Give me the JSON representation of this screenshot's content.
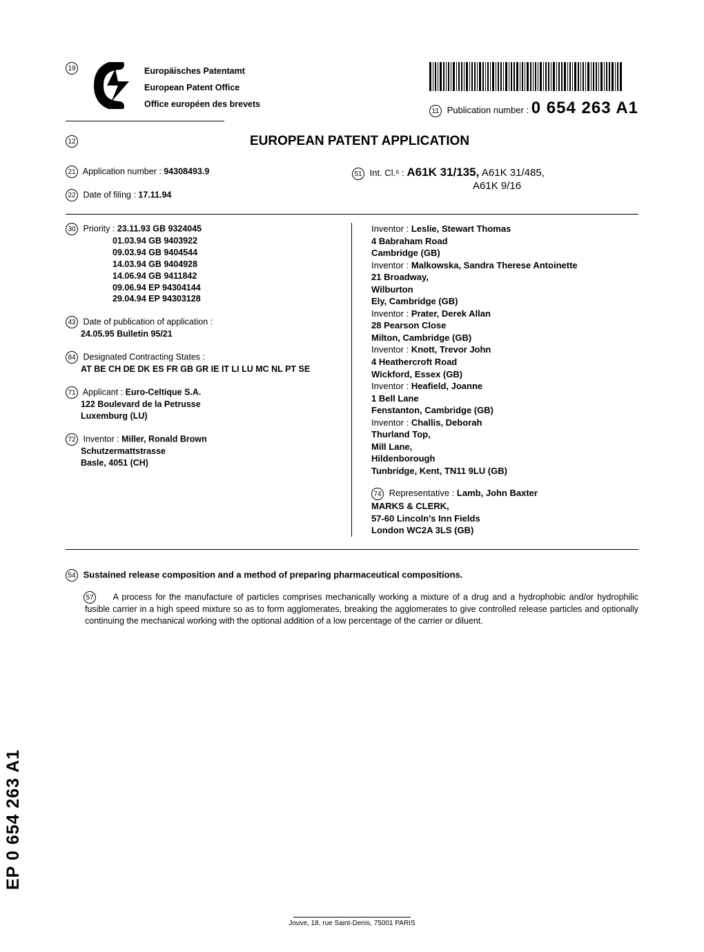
{
  "header": {
    "office_titles": [
      "Europäisches Patentamt",
      "European Patent Office",
      "Office européen des brevets"
    ],
    "circled_19": "19",
    "circled_11": "11",
    "pub_label": "Publication number :",
    "pub_number": "0 654 263 A1"
  },
  "doc_title": {
    "circled": "12",
    "text": "EUROPEAN PATENT APPLICATION"
  },
  "pre_biblio": {
    "app_no": {
      "circled": "21",
      "label": "Application number :",
      "value": "94308493.9"
    },
    "filing": {
      "circled": "22",
      "label": "Date of filing :",
      "value": "17.11.94"
    },
    "intcl": {
      "circled": "51",
      "label": "Int. Cl.⁶ :",
      "main": "A61K 31/135,",
      "sub": "A61K 31/485,",
      "line2": "A61K 9/16"
    }
  },
  "biblio_left": {
    "priority": {
      "circled": "30",
      "label": "Priority :",
      "items": [
        "23.11.93 GB 9324045",
        "01.03.94 GB 9403922",
        "09.03.94 GB 9404544",
        "14.03.94 GB 9404928",
        "14.06.94 GB 9411842",
        "09.06.94 EP 94304144",
        "29.04.94 EP 94303128"
      ]
    },
    "pub_app": {
      "circled": "43",
      "label": "Date of publication of application :",
      "value": "24.05.95 Bulletin 95/21"
    },
    "states": {
      "circled": "84",
      "label": "Designated Contracting States :",
      "value": "AT BE CH DE DK ES FR GB GR IE IT LI LU MC NL PT SE"
    },
    "applicant": {
      "circled": "71",
      "label": "Applicant :",
      "name": "Euro-Celtique S.A.",
      "addr1": "122 Boulevard de la Petrusse",
      "addr2": "Luxemburg (LU)"
    },
    "inventor1": {
      "circled": "72",
      "label": "Inventor :",
      "name": "Miller, Ronald Brown",
      "addr1": "Schutzermattstrasse",
      "addr2": "Basle, 4051 (CH)"
    }
  },
  "biblio_right": {
    "inventors": [
      {
        "label": "Inventor :",
        "name": "Leslie, Stewart Thomas",
        "lines": [
          "4 Babraham Road",
          "Cambridge (GB)"
        ]
      },
      {
        "label": "Inventor :",
        "name": "Malkowska, Sandra Therese Antoinette",
        "lines": [
          "21 Broadway,",
          "Wilburton",
          "Ely, Cambridge (GB)"
        ]
      },
      {
        "label": "Inventor :",
        "name": "Prater, Derek Allan",
        "lines": [
          "28 Pearson Close",
          "Milton, Cambridge (GB)"
        ]
      },
      {
        "label": "Inventor :",
        "name": "Knott, Trevor John",
        "lines": [
          "4 Heathercroft Road",
          "Wickford, Essex (GB)"
        ]
      },
      {
        "label": "Inventor :",
        "name": "Heafield, Joanne",
        "lines": [
          "1 Bell Lane",
          "Fenstanton, Cambridge (GB)"
        ]
      },
      {
        "label": "Inventor :",
        "name": "Challis, Deborah",
        "lines": [
          "Thurland Top,",
          "Mill Lane,",
          "Hildenborough",
          "Tunbridge, Kent, TN11 9LU (GB)"
        ]
      }
    ],
    "representative": {
      "circled": "74",
      "label": "Representative :",
      "name": "Lamb, John Baxter",
      "lines": [
        "MARKS & CLERK,",
        "57-60 Lincoln's Inn Fields",
        "London WC2A 3LS (GB)"
      ]
    }
  },
  "invention": {
    "circled": "54",
    "title": "Sustained release composition and a method of preparing pharmaceutical compositions."
  },
  "abstract": {
    "circled": "57",
    "text": "A process for the manufacture of particles comprises mechanically working a mixture of a drug and a hydrophobic and/or hydrophilic fusible carrier in a high speed mixture so as to form agglomerates, breaking the agglomerates to give controlled release particles and optionally continuing the mechanical working with the optional addition of a low percentage of the carrier or diluent."
  },
  "spine": "EP 0 654 263 A1",
  "footer": "Jouve, 18, rue Saint-Denis, 75001 PARIS"
}
